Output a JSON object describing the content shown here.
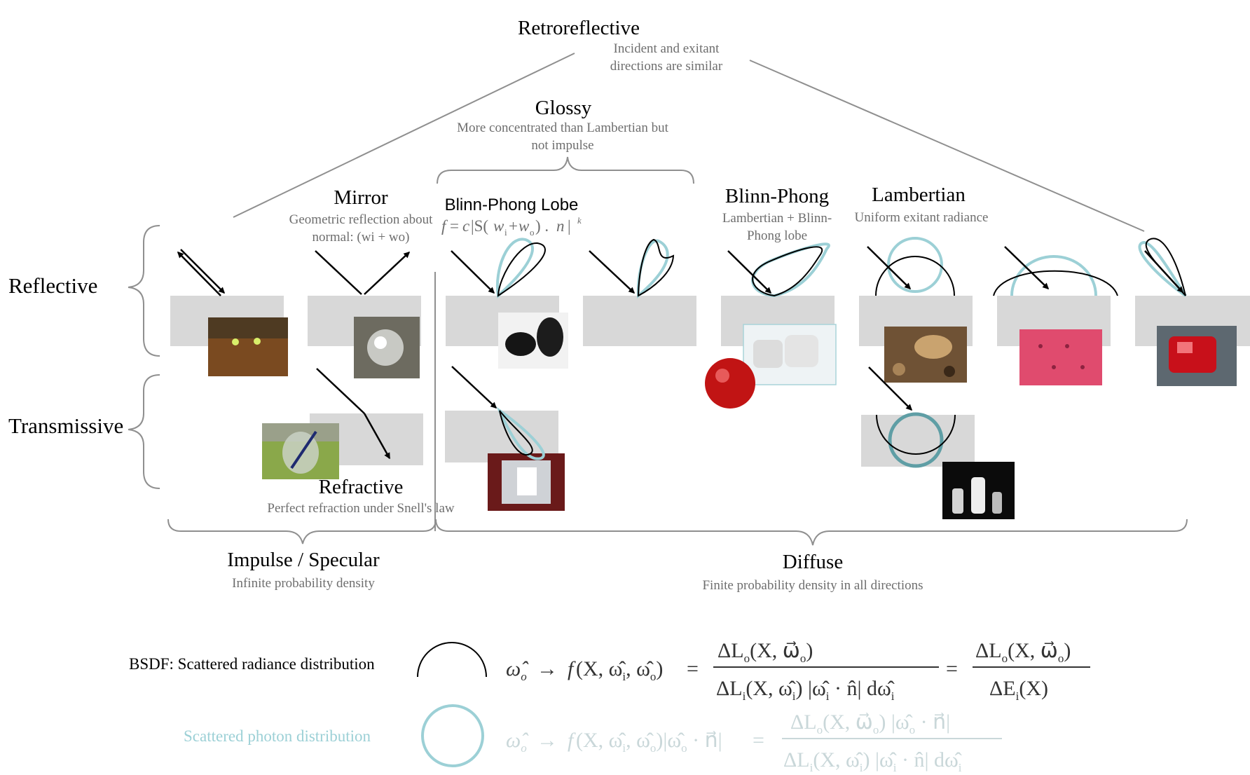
{
  "colors": {
    "scatter": "#9cd0d6",
    "scatter_dark": "#5f9ea5",
    "surface": "#d8d8d8",
    "desc": "#6e6e6e",
    "line": "#8f8f8f"
  },
  "retroreflective": {
    "title": "Retroreflective",
    "desc": "Incident and exitant directions are similar"
  },
  "glossy": {
    "title": "Glossy",
    "desc": "More concentrated than Lambertian but not impulse"
  },
  "mirror": {
    "title": "Mirror",
    "desc": "Geometric reflection about normal: (wi + wo)"
  },
  "blinn_phong_lobe": {
    "title": "Blinn-Phong Lobe",
    "formula": "f= c|S(wi+wo) . n |k"
  },
  "blinn_phong": {
    "title": "Blinn-Phong",
    "desc": "Lambertian + Blinn-Phong lobe"
  },
  "lambertian": {
    "title": "Lambertian",
    "desc": "Uniform exitant radiance"
  },
  "refractive": {
    "title": "Refractive",
    "desc": "Perfect refraction under Snell's law"
  },
  "rows": {
    "reflective": "Reflective",
    "transmissive": "Transmissive"
  },
  "impulse": {
    "title": "Impulse / Specular",
    "desc": "Infinite probability density"
  },
  "diffuse": {
    "title": "Diffuse",
    "desc": "Finite probability density in all directions"
  },
  "legend": {
    "bsdf_label": "BSDF: Scattered radiance distribution",
    "photon_label": "Scattered photon distribution",
    "bsdf_formula": "ω̂o → f(X, ω̂i, ω̂o) = ΔLo(X, ω⃗o) / ΔLi(X, ω̂i) |ω̂i · n̂| dω̂i = ΔLo(X, ω⃗o) / ΔEi(X)",
    "photon_formula": "ω̂o → f(X, ω̂i, ω̂o)|ω̂o · n⃗| = ΔLo(X, ω⃗o) |ω̂o · n⃗| / ΔLi(X, ω̂i) |ω̂i · n̂| dω̂i"
  }
}
